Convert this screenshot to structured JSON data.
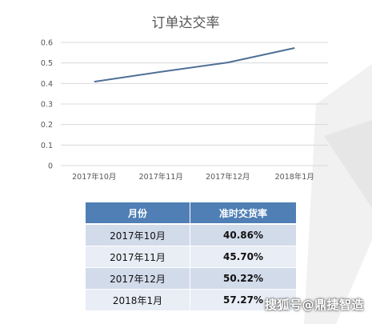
{
  "chart_data": {
    "type": "line",
    "title": "订单达交率",
    "categories": [
      "2017年10月",
      "2017年11月",
      "2017年12月",
      "2018年1月"
    ],
    "series": [
      {
        "values": [
          0.4086,
          0.457,
          0.5022,
          0.5727
        ]
      }
    ],
    "y_ticks": [
      "0",
      "0.1",
      "0.2",
      "0.3",
      "0.4",
      "0.5",
      "0.6"
    ],
    "ylim": [
      0,
      0.6
    ],
    "grid": true,
    "line_color": "#4f6f96"
  },
  "table": {
    "headers": [
      "月份",
      "准时交货率"
    ],
    "rows": [
      {
        "month": "2017年10月",
        "rate": "40.86%"
      },
      {
        "month": "2017年11月",
        "rate": "45.70%"
      },
      {
        "month": "2017年12月",
        "rate": "50.22%"
      },
      {
        "month": "2018年1月",
        "rate": "57.27%"
      }
    ]
  },
  "watermark": "搜狐号@鼎捷智造"
}
